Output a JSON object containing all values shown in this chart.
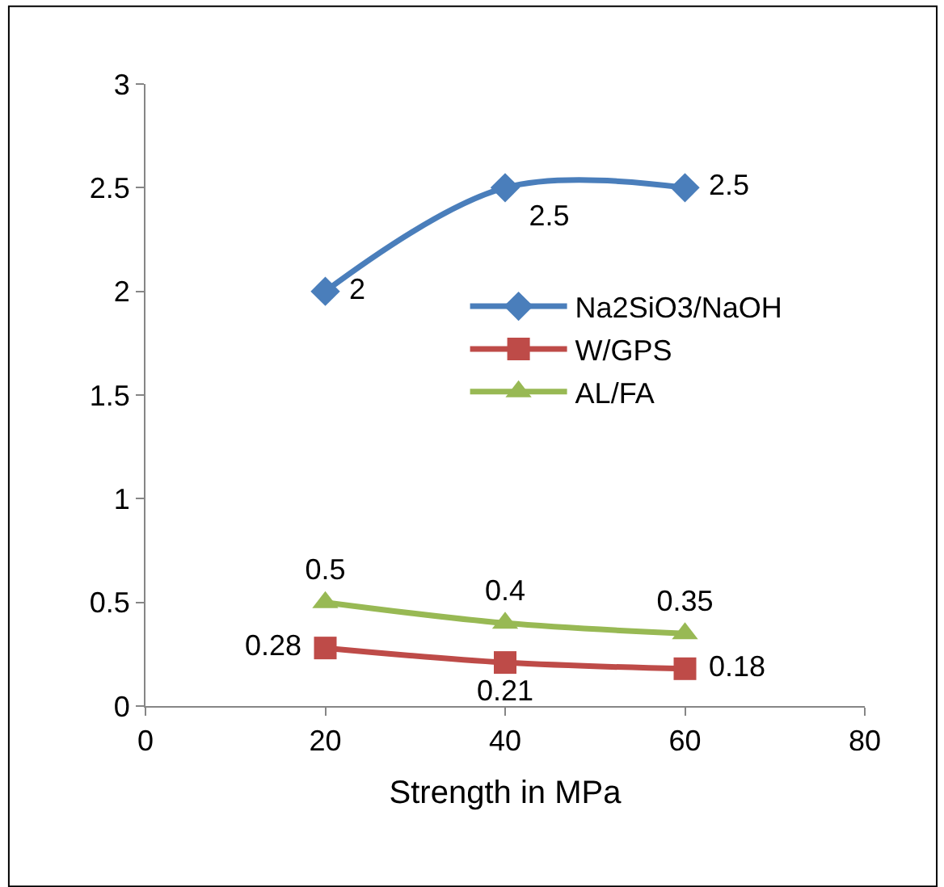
{
  "chart_data": {
    "type": "line",
    "xlabel": "Strength in MPa",
    "x": [
      20,
      40,
      60
    ],
    "series": [
      {
        "name": "Na2SiO3/NaOH",
        "color": "#4a7ebb",
        "values": [
          2,
          2.5,
          2.5
        ],
        "marker": "diamond"
      },
      {
        "name": "W/GPS",
        "color": "#be4b48",
        "values": [
          0.28,
          0.21,
          0.18
        ],
        "marker": "square"
      },
      {
        "name": "AL/FA",
        "color": "#98b954",
        "values": [
          0.5,
          0.4,
          0.35
        ],
        "marker": "triangle"
      }
    ],
    "xlim": [
      0,
      80
    ],
    "xticks": [
      0,
      20,
      40,
      60,
      80
    ],
    "ylim": [
      0,
      3
    ],
    "yticks": [
      0,
      0.5,
      1,
      1.5,
      2,
      2.5,
      3
    ],
    "data_labels": true,
    "legend": "right"
  }
}
